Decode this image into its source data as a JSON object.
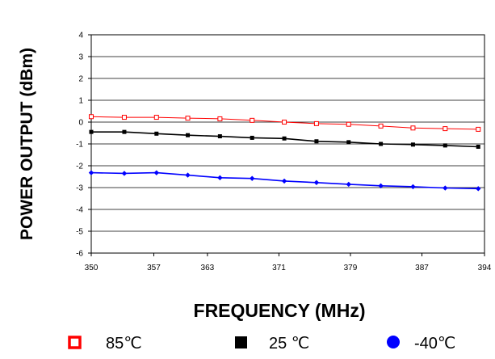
{
  "chart_data": {
    "type": "line",
    "xlabel": "FREQUENCY (MHz)",
    "ylabel": "POWER OUTPUT (dBm)",
    "xlim": [
      350,
      394
    ],
    "ylim": [
      -6,
      4
    ],
    "x_ticks": [
      "350",
      "357",
      "363",
      "371",
      "379",
      "387",
      "394"
    ],
    "y_ticks": [
      "4",
      "3",
      "2",
      "1",
      "0",
      "-1",
      "-2",
      "-3",
      "-4",
      "-5",
      "-6"
    ],
    "grid": true,
    "legend_position": "bottom",
    "x": [
      350,
      353.7,
      357.3,
      360.8,
      364.4,
      368.0,
      371.6,
      375.2,
      378.8,
      382.4,
      386.0,
      389.6,
      393.3
    ],
    "series": [
      {
        "name": "85℃",
        "color": "#ff0000",
        "marker": "square-open",
        "values": [
          0.25,
          0.22,
          0.22,
          0.18,
          0.15,
          0.08,
          0.0,
          -0.07,
          -0.1,
          -0.18,
          -0.27,
          -0.3,
          -0.33
        ]
      },
      {
        "name": "25 ℃",
        "color": "#000000",
        "marker": "square-filled",
        "values": [
          -0.45,
          -0.45,
          -0.53,
          -0.6,
          -0.65,
          -0.72,
          -0.75,
          -0.88,
          -0.92,
          -1.0,
          -1.03,
          -1.07,
          -1.13
        ]
      },
      {
        "name": "-40℃",
        "color": "#0000ff",
        "marker": "diamond-filled",
        "values": [
          -2.32,
          -2.35,
          -2.32,
          -2.43,
          -2.55,
          -2.58,
          -2.7,
          -2.77,
          -2.85,
          -2.92,
          -2.96,
          -3.02,
          -3.05
        ]
      }
    ]
  }
}
